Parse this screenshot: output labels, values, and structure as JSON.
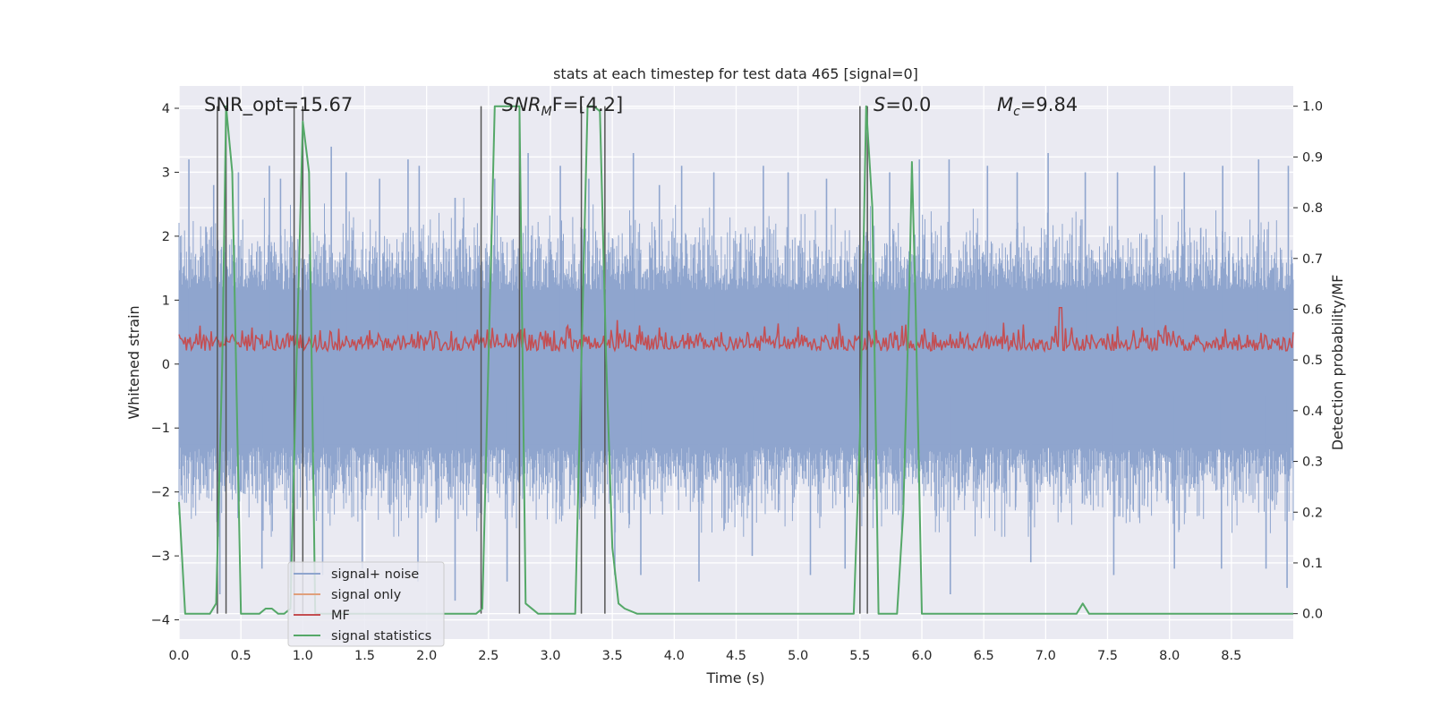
{
  "chart_data": {
    "type": "line",
    "title": "stats at each timestep for test data 465 [signal=0]",
    "xlabel": "Time (s)",
    "ylabel": "Whitened strain",
    "y2label": "Detection probability/MF",
    "xlim": [
      0.0,
      9.0
    ],
    "ylim": [
      -4.3,
      4.35
    ],
    "y2lim": [
      -0.05,
      1.04
    ],
    "xticks": [
      0.0,
      0.5,
      1.0,
      1.5,
      2.0,
      2.5,
      3.0,
      3.5,
      4.0,
      4.5,
      5.0,
      5.5,
      6.0,
      6.5,
      7.0,
      7.5,
      8.0,
      8.5
    ],
    "xtick_labels": [
      "0.0",
      "0.5",
      "1.0",
      "1.5",
      "2.0",
      "2.5",
      "3.0",
      "3.5",
      "4.0",
      "4.5",
      "5.0",
      "5.5",
      "6.0",
      "6.5",
      "7.0",
      "7.5",
      "8.0",
      "8.5"
    ],
    "yticks": [
      4,
      3,
      2,
      1,
      0,
      -1,
      -2,
      -3,
      -4
    ],
    "ytick_labels": [
      "4",
      "3",
      "2",
      "1",
      "0",
      "−1",
      "−2",
      "−3",
      "−4"
    ],
    "y2ticks": [
      1.0,
      0.9,
      0.8,
      0.7,
      0.6,
      0.5,
      0.4,
      0.3,
      0.2,
      0.1,
      0.0
    ],
    "y2tick_labels": [
      "1.0",
      "0.9",
      "0.8",
      "0.7",
      "0.6",
      "0.5",
      "0.4",
      "0.3",
      "0.2",
      "0.1",
      "0.0"
    ],
    "grid": true,
    "annotations": {
      "snr_opt": "SNR_opt=15.67",
      "snr_mf_base": "SNR",
      "snr_mf_sub": "M",
      "snr_mf_rest": "F=[4.2]",
      "s_var": "S",
      "s_rest": "=0.0",
      "mc_var": "M",
      "mc_sub": "c",
      "mc_rest": "=9.84"
    },
    "legend": {
      "placement": "lower-left",
      "entries": [
        "signal+ noise",
        "signal only",
        "MF",
        "signal statistics"
      ]
    },
    "series_colors": {
      "signal_noise": "#8fa5ce",
      "signal_only": "#e0a07c",
      "mf": "#c44e52",
      "signal_statistics": "#55a868",
      "vlines": "#555555"
    },
    "vlines_x": [
      0.31,
      0.38,
      0.93,
      1.0,
      2.44,
      2.75,
      3.25,
      3.44,
      5.5,
      5.56
    ],
    "signal_statistics": {
      "x": [
        0.0,
        0.05,
        0.1,
        0.2,
        0.25,
        0.3,
        0.35,
        0.38,
        0.43,
        0.5,
        0.55,
        0.6,
        0.65,
        0.7,
        0.75,
        0.8,
        0.85,
        0.9,
        0.95,
        1.0,
        1.05,
        1.1,
        1.15,
        1.2,
        1.3,
        1.5,
        2.0,
        2.3,
        2.4,
        2.45,
        2.5,
        2.55,
        2.6,
        2.7,
        2.75,
        2.8,
        2.9,
        3.0,
        3.2,
        3.25,
        3.3,
        3.35,
        3.4,
        3.45,
        3.5,
        3.55,
        3.6,
        3.7,
        4.0,
        5.0,
        5.45,
        5.5,
        5.55,
        5.6,
        5.65,
        5.7,
        5.8,
        5.85,
        5.9,
        5.92,
        5.95,
        6.0,
        6.05,
        7.0,
        7.25,
        7.3,
        7.35,
        7.45,
        8.0,
        9.0
      ],
      "y": [
        0.22,
        0.0,
        0.0,
        0.0,
        0.0,
        0.02,
        0.5,
        1.0,
        0.87,
        0.0,
        0.0,
        0.0,
        0.0,
        0.01,
        0.01,
        0.0,
        0.0,
        0.01,
        0.5,
        0.97,
        0.87,
        0.0,
        0.0,
        0.0,
        0.0,
        0.0,
        0.0,
        0.0,
        0.0,
        0.01,
        0.5,
        1.0,
        1.0,
        1.0,
        1.0,
        0.02,
        0.0,
        0.0,
        0.0,
        0.5,
        1.0,
        1.0,
        0.99,
        0.5,
        0.13,
        0.02,
        0.01,
        0.0,
        0.0,
        0.0,
        0.0,
        0.35,
        1.0,
        0.8,
        0.0,
        0.0,
        0.0,
        0.2,
        0.65,
        0.89,
        0.6,
        0.0,
        0.0,
        0.0,
        0.0,
        0.02,
        0.0,
        0.0,
        0.0,
        0.0
      ]
    },
    "signal_noise_spikes": {
      "x": [
        0.08,
        0.28,
        0.48,
        0.73,
        0.82,
        1.23,
        1.35,
        1.62,
        1.85,
        1.94,
        2.23,
        2.55,
        2.82,
        3.08,
        3.31,
        3.67,
        3.88,
        4.06,
        4.32,
        4.72,
        4.92,
        5.23,
        5.74,
        5.98,
        6.22,
        6.53,
        6.77,
        7.02,
        7.32,
        7.58,
        7.88,
        8.12,
        8.43,
        8.72,
        8.96
      ],
      "y": [
        3.2,
        2.8,
        3.0,
        3.1,
        2.9,
        3.4,
        3.0,
        2.9,
        3.2,
        3.1,
        2.6,
        2.9,
        3.3,
        3.1,
        2.9,
        3.3,
        2.8,
        3.1,
        3.0,
        3.1,
        3.0,
        2.9,
        3.0,
        3.2,
        3.2,
        3.1,
        3.0,
        3.3,
        3.0,
        3.0,
        3.1,
        3.0,
        3.1,
        3.2,
        3.1
      ],
      "neg_x": [
        0.33,
        0.67,
        0.9,
        1.16,
        1.48,
        1.93,
        2.23,
        2.65,
        3.52,
        3.73,
        4.2,
        4.63,
        5.1,
        5.38,
        6.23,
        6.88,
        7.55,
        8.04,
        8.42,
        8.78,
        8.95
      ],
      "neg_y": [
        -3.6,
        -3.2,
        -3.5,
        -3.3,
        -3.2,
        -3.4,
        -3.7,
        -3.4,
        -3.3,
        -3.3,
        -3.4,
        -3.0,
        -3.3,
        -3.2,
        -3.6,
        -3.1,
        -3.3,
        -3.2,
        -3.2,
        -3.2,
        -3.5
      ]
    }
  }
}
